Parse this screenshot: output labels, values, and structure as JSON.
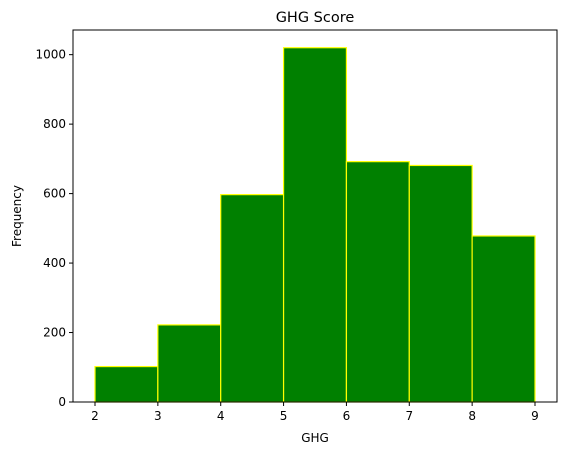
{
  "chart_data": {
    "type": "bar",
    "title": "GHG Score",
    "xlabel": "GHG",
    "ylabel": "Frequency",
    "bin_edges": [
      2,
      3,
      4,
      5,
      6,
      7,
      8,
      9
    ],
    "values": [
      102,
      222,
      597,
      1020,
      692,
      681,
      478
    ],
    "xlim": [
      1.65,
      9.35
    ],
    "ylim": [
      0,
      1071
    ],
    "x_ticks": [
      2,
      3,
      4,
      5,
      6,
      7,
      8,
      9
    ],
    "y_ticks": [
      0,
      200,
      400,
      600,
      800,
      1000
    ],
    "grid": false,
    "bar_color": "#008000",
    "edge_color": "#ffff00"
  }
}
